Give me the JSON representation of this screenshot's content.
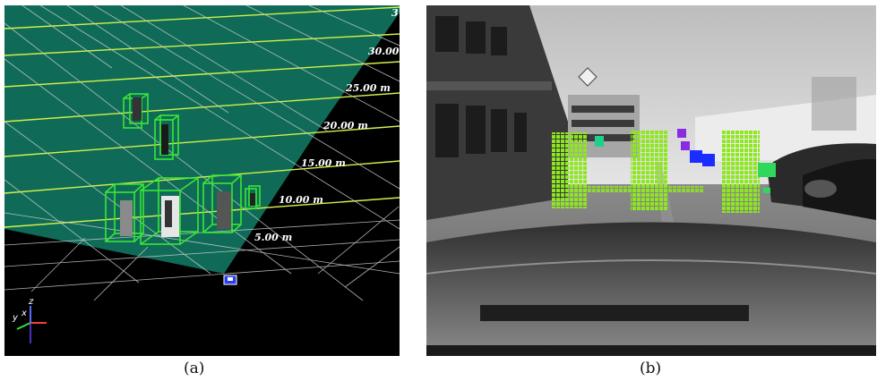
{
  "figure": {
    "panel_a": {
      "caption": "(a)",
      "distance_labels": [
        "5.00 m",
        "10.00 m",
        "15.00 m",
        "20.00 m",
        "25.00 m",
        "30.00 m",
        "3"
      ],
      "axes_labels": [
        "y",
        "x",
        "z"
      ],
      "colors": {
        "floor": "#0f6b57",
        "grid_green": "#d2f04a",
        "grid_white": "#d8d8d8",
        "box": "#39e635",
        "sensor": "#2a3cf0"
      }
    },
    "panel_b": {
      "caption": "(b)",
      "colors": {
        "person_points": "#8ee81e",
        "point_purple": "#8a2be2",
        "point_blue": "#1a2cff",
        "point_teal": "#1fd08a"
      }
    }
  }
}
